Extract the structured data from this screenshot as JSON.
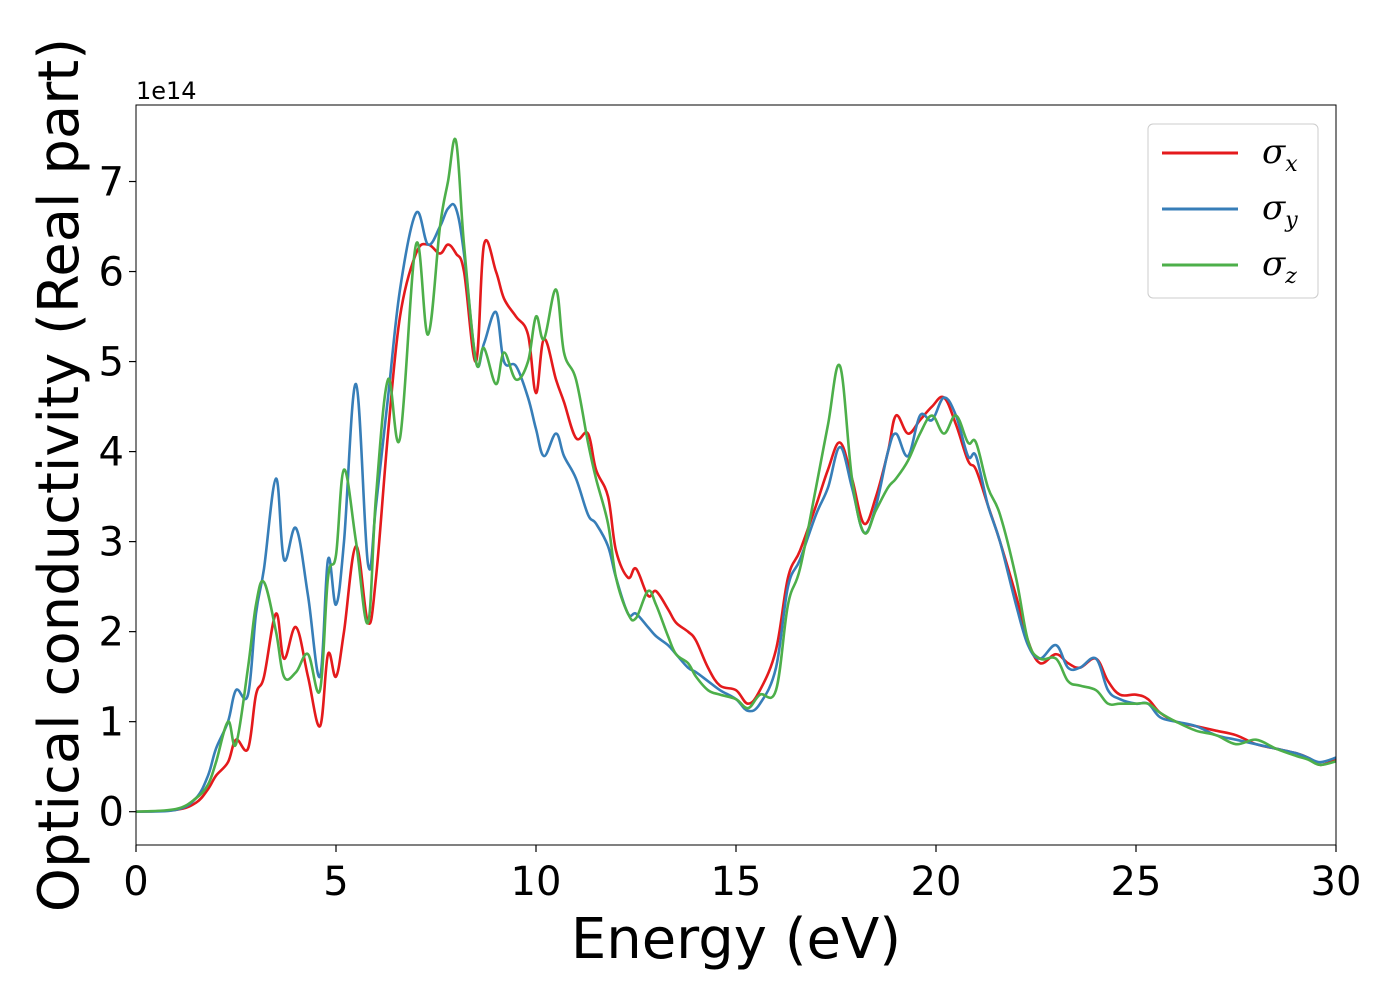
{
  "chart_data": {
    "type": "line",
    "xlabel": "Energy (eV)",
    "ylabel": "Optical conductivity (Real part)",
    "y_offset_label": "1e14",
    "y_scale": 100000000000000.0,
    "xlim": [
      0,
      30
    ],
    "ylim": [
      -0.37,
      7.85
    ],
    "x_ticks": [
      0,
      5,
      10,
      15,
      20,
      25,
      30
    ],
    "x_tick_labels": [
      "0",
      "5",
      "10",
      "15",
      "20",
      "25",
      "30"
    ],
    "y_ticks": [
      0,
      1,
      2,
      3,
      4,
      5,
      6,
      7
    ],
    "y_tick_labels": [
      "0",
      "1",
      "2",
      "3",
      "4",
      "5",
      "6",
      "7"
    ],
    "grid": false,
    "legend_position": "top-right",
    "series": [
      {
        "name": "σx",
        "symbol": "σ",
        "sub": "x",
        "color": "#e41a1c",
        "x": [
          0,
          1,
          1.5,
          1.8,
          2,
          2.3,
          2.5,
          2.8,
          3,
          3.2,
          3.5,
          3.7,
          4,
          4.3,
          4.6,
          4.8,
          5,
          5.2,
          5.5,
          5.8,
          6,
          6.3,
          6.6,
          7,
          7.3,
          7.6,
          7.8,
          8,
          8.2,
          8.5,
          8.7,
          9,
          9.2,
          9.5,
          9.8,
          10,
          10.2,
          10.5,
          10.7,
          11,
          11.3,
          11.5,
          11.8,
          12,
          12.3,
          12.5,
          12.8,
          13,
          13.3,
          13.5,
          13.8,
          14,
          14.3,
          14.6,
          15,
          15.3,
          15.6,
          16,
          16.3,
          16.6,
          17,
          17.3,
          17.6,
          17.9,
          18.2,
          18.5,
          18.8,
          19,
          19.3,
          19.6,
          19.9,
          20.2,
          20.5,
          20.8,
          21,
          21.3,
          21.6,
          22,
          22.3,
          22.6,
          23,
          23.3,
          23.6,
          24,
          24.3,
          24.6,
          25,
          25.3,
          25.6,
          26,
          26.5,
          27,
          27.5,
          28,
          28.5,
          29,
          29.3,
          29.6,
          30
        ],
        "y": [
          0,
          0.02,
          0.1,
          0.25,
          0.4,
          0.55,
          0.8,
          0.7,
          1.3,
          1.5,
          2.2,
          1.7,
          2.05,
          1.5,
          0.95,
          1.75,
          1.5,
          2.0,
          2.95,
          2.1,
          2.6,
          4.2,
          5.5,
          6.2,
          6.3,
          6.2,
          6.3,
          6.2,
          6.0,
          5.0,
          6.3,
          6.0,
          5.7,
          5.5,
          5.3,
          4.65,
          5.25,
          4.8,
          4.55,
          4.15,
          4.2,
          3.8,
          3.5,
          2.9,
          2.6,
          2.7,
          2.4,
          2.45,
          2.25,
          2.1,
          2.0,
          1.9,
          1.6,
          1.4,
          1.35,
          1.2,
          1.35,
          1.8,
          2.6,
          2.9,
          3.4,
          3.8,
          4.1,
          3.7,
          3.2,
          3.5,
          4.0,
          4.4,
          4.2,
          4.35,
          4.5,
          4.6,
          4.3,
          3.9,
          3.8,
          3.4,
          3.0,
          2.4,
          1.9,
          1.65,
          1.75,
          1.65,
          1.6,
          1.7,
          1.45,
          1.3,
          1.3,
          1.25,
          1.1,
          1.0,
          0.95,
          0.9,
          0.85,
          0.75,
          0.7,
          0.65,
          0.6,
          0.52,
          0.58
        ]
      },
      {
        "name": "σy",
        "symbol": "σ",
        "sub": "y",
        "color": "#377eb8",
        "x": [
          0,
          1,
          1.5,
          1.8,
          2,
          2.3,
          2.5,
          2.8,
          3,
          3.2,
          3.5,
          3.7,
          4,
          4.3,
          4.6,
          4.8,
          5,
          5.2,
          5.5,
          5.8,
          6,
          6.3,
          6.6,
          7,
          7.3,
          7.6,
          7.8,
          8,
          8.2,
          8.5,
          8.7,
          9,
          9.2,
          9.5,
          9.8,
          10,
          10.2,
          10.5,
          10.7,
          11,
          11.3,
          11.5,
          11.8,
          12,
          12.3,
          12.5,
          12.8,
          13,
          13.3,
          13.5,
          13.8,
          14,
          14.3,
          14.6,
          15,
          15.3,
          15.6,
          16,
          16.3,
          16.6,
          17,
          17.3,
          17.6,
          17.9,
          18.2,
          18.5,
          18.8,
          19,
          19.3,
          19.6,
          19.9,
          20.2,
          20.5,
          20.8,
          21,
          21.3,
          21.6,
          22,
          22.3,
          22.6,
          23,
          23.3,
          23.6,
          24,
          24.3,
          24.6,
          25,
          25.3,
          25.6,
          26,
          26.5,
          27,
          27.5,
          28,
          28.5,
          29,
          29.3,
          29.6,
          30
        ],
        "y": [
          0,
          0.02,
          0.15,
          0.4,
          0.7,
          1.0,
          1.35,
          1.3,
          2.2,
          2.7,
          3.7,
          2.8,
          3.15,
          2.4,
          1.5,
          2.8,
          2.3,
          3.0,
          4.75,
          2.75,
          3.4,
          4.6,
          5.8,
          6.65,
          6.3,
          6.5,
          6.7,
          6.7,
          6.2,
          5.0,
          5.2,
          5.55,
          5.0,
          4.95,
          4.6,
          4.25,
          3.95,
          4.2,
          3.95,
          3.7,
          3.3,
          3.2,
          2.95,
          2.6,
          2.2,
          2.2,
          2.05,
          1.95,
          1.85,
          1.75,
          1.6,
          1.55,
          1.45,
          1.35,
          1.25,
          1.12,
          1.2,
          1.6,
          2.5,
          2.8,
          3.3,
          3.6,
          4.05,
          3.6,
          3.1,
          3.4,
          4.0,
          4.2,
          3.95,
          4.4,
          4.35,
          4.6,
          4.4,
          3.95,
          3.95,
          3.4,
          3.0,
          2.3,
          1.85,
          1.7,
          1.85,
          1.6,
          1.6,
          1.7,
          1.35,
          1.25,
          1.2,
          1.2,
          1.05,
          1.0,
          0.95,
          0.85,
          0.8,
          0.75,
          0.7,
          0.65,
          0.6,
          0.55,
          0.6
        ]
      },
      {
        "name": "σz",
        "symbol": "σ",
        "sub": "z",
        "color": "#4daf4a",
        "x": [
          0,
          1,
          1.5,
          1.8,
          2,
          2.3,
          2.5,
          2.8,
          3,
          3.2,
          3.5,
          3.7,
          4,
          4.3,
          4.6,
          4.8,
          5,
          5.2,
          5.5,
          5.8,
          6,
          6.3,
          6.6,
          7,
          7.3,
          7.6,
          7.8,
          8,
          8.2,
          8.5,
          8.7,
          9,
          9.2,
          9.5,
          9.8,
          10,
          10.2,
          10.5,
          10.7,
          11,
          11.3,
          11.5,
          11.8,
          12,
          12.3,
          12.5,
          12.8,
          13,
          13.3,
          13.5,
          13.8,
          14,
          14.3,
          14.6,
          15,
          15.3,
          15.6,
          16,
          16.3,
          16.6,
          17,
          17.3,
          17.6,
          17.9,
          18.2,
          18.5,
          18.8,
          19,
          19.3,
          19.6,
          19.9,
          20.2,
          20.5,
          20.8,
          21,
          21.3,
          21.6,
          22,
          22.3,
          22.6,
          23,
          23.3,
          23.6,
          24,
          24.3,
          24.6,
          25,
          25.3,
          25.6,
          26,
          26.5,
          27,
          27.5,
          28,
          28.5,
          29,
          29.3,
          29.6,
          30
        ],
        "y": [
          0,
          0.03,
          0.15,
          0.3,
          0.55,
          1.0,
          0.75,
          1.6,
          2.3,
          2.55,
          2.0,
          1.5,
          1.55,
          1.75,
          1.35,
          2.6,
          2.85,
          3.8,
          3.0,
          2.1,
          3.5,
          4.8,
          4.15,
          6.3,
          5.3,
          6.5,
          7.0,
          7.45,
          6.3,
          5.0,
          5.15,
          4.75,
          5.1,
          4.8,
          5.0,
          5.5,
          5.25,
          5.8,
          5.1,
          4.8,
          4.1,
          3.7,
          3.2,
          2.6,
          2.2,
          2.15,
          2.45,
          2.3,
          1.95,
          1.75,
          1.65,
          1.5,
          1.35,
          1.3,
          1.25,
          1.15,
          1.3,
          1.35,
          2.3,
          2.7,
          3.6,
          4.3,
          4.95,
          3.7,
          3.1,
          3.35,
          3.6,
          3.7,
          3.9,
          4.2,
          4.4,
          4.2,
          4.4,
          4.1,
          4.1,
          3.6,
          3.3,
          2.6,
          1.9,
          1.7,
          1.7,
          1.45,
          1.4,
          1.35,
          1.2,
          1.2,
          1.2,
          1.2,
          1.1,
          1.0,
          0.9,
          0.85,
          0.75,
          0.8,
          0.7,
          0.62,
          0.58,
          0.52,
          0.56
        ]
      }
    ]
  }
}
